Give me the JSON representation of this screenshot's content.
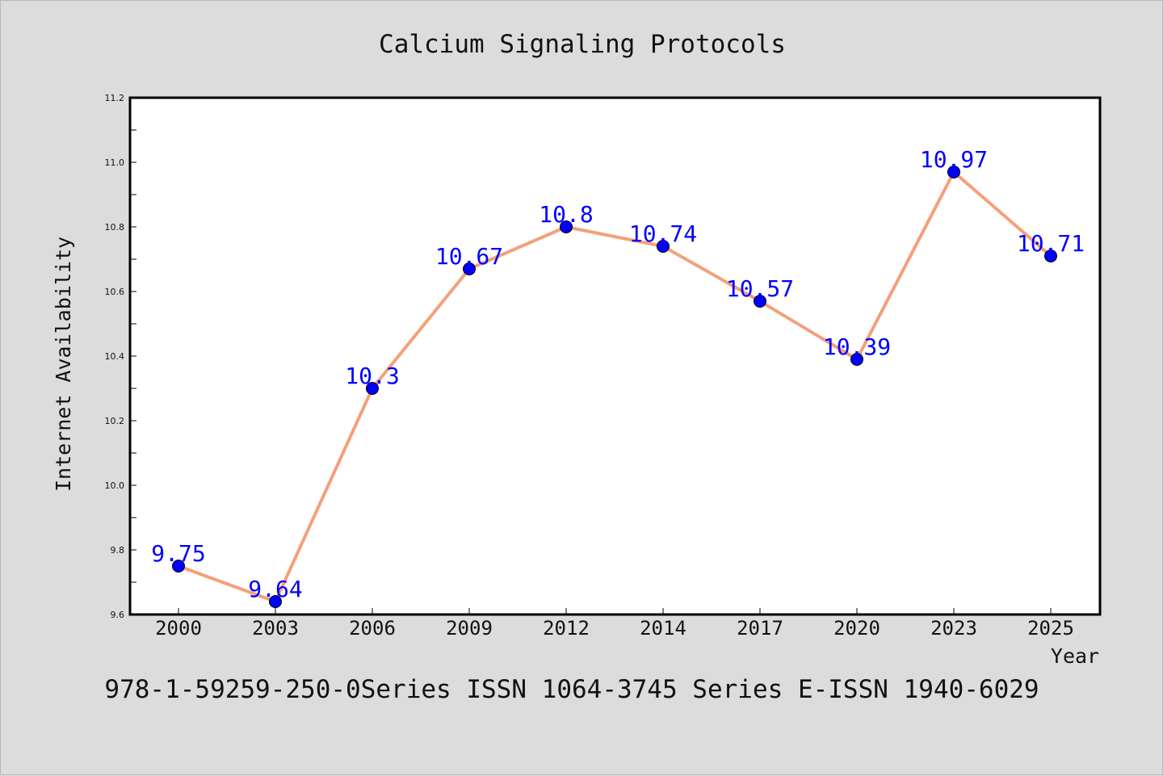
{
  "chart_data": {
    "type": "line",
    "title": "Calcium Signaling Protocols",
    "xlabel": "Year",
    "ylabel": "Internet Availability",
    "categories": [
      "2000",
      "2003",
      "2006",
      "2009",
      "2012",
      "2014",
      "2017",
      "2020",
      "2023",
      "2025"
    ],
    "series": [
      {
        "values": [
          9.75,
          9.64,
          10.3,
          10.67,
          10.8,
          10.74,
          10.57,
          10.39,
          10.97,
          10.71
        ],
        "data_labels": [
          "9.75",
          "9.64",
          "10.3",
          "10.67",
          "10.8",
          "10.74",
          "10.57",
          "10.39",
          "10.97",
          "10.71"
        ],
        "line_color": "#f4a07a",
        "marker_color": "#0000ff"
      }
    ],
    "ylim": [
      9.6,
      11.2
    ],
    "yticks": [
      "9.6",
      "9.8",
      "10.0",
      "10.2",
      "10.4",
      "10.6",
      "10.8",
      "11.0",
      "11.2"
    ],
    "grid": false,
    "legend": "none"
  },
  "footer": {
    "text": "978-1-59259-250-0Series ISSN 1064-3745 Series E-ISSN 1940-6029"
  },
  "colors": {
    "background": "#dcdcdc",
    "plot_background": "#ffffff",
    "label_color": "#0000ff"
  }
}
